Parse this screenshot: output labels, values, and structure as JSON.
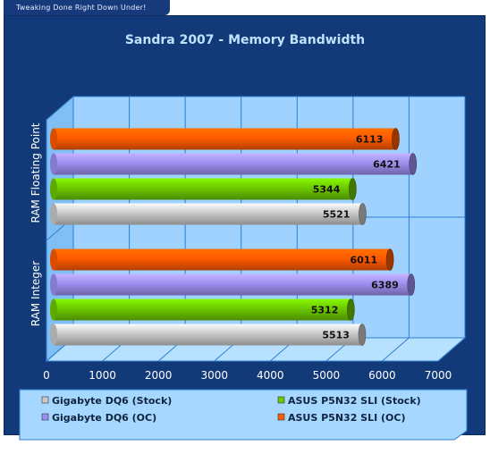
{
  "banner": {
    "text": "Tweaking Done Right Down Under!"
  },
  "chart_data": {
    "type": "bar",
    "orientation": "horizontal",
    "title": "Sandra 2007 - Memory Bandwidth",
    "categories": [
      "RAM Floating Point",
      "RAM Integer"
    ],
    "series": [
      {
        "name": "ASUS P5N32 SLI (OC)",
        "color": "#ff5a00",
        "values": [
          6113,
          6011
        ]
      },
      {
        "name": "Gigabyte DQ6 (OC)",
        "color": "#9d8ff0",
        "values": [
          6421,
          6389
        ]
      },
      {
        "name": "ASUS P5N32 SLI (Stock)",
        "color": "#6cc800",
        "values": [
          5344,
          5312
        ]
      },
      {
        "name": "Gigabyte DQ6 (Stock)",
        "color": "#c9c9c9",
        "values": [
          5521,
          5513
        ]
      }
    ],
    "xlim": [
      0,
      7000
    ],
    "xticks": [
      "0",
      "1000",
      "2000",
      "3000",
      "4000",
      "5000",
      "6000",
      "7000"
    ],
    "grid": true,
    "legend": {
      "position": "bottom",
      "items": [
        "Gigabyte DQ6 (Stock)",
        "ASUS P5N32 SLI (Stock)",
        "Gigabyte DQ6 (OC)",
        "ASUS P5N32 SLI (OC)"
      ]
    }
  }
}
